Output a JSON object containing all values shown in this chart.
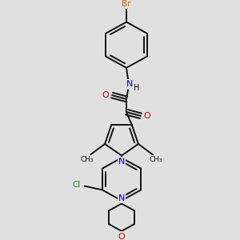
{
  "bg_color": "#e0e0e0",
  "bond_color": "#111111",
  "atom_colors": {
    "Br": "#cc6600",
    "N": "#0000cc",
    "O": "#cc0000",
    "Cl": "#228B22",
    "C": "#111111",
    "H": "#111111"
  },
  "line_width": 1.4,
  "dbo": 0.008,
  "figsize": [
    3.0,
    3.0
  ],
  "dpi": 100
}
